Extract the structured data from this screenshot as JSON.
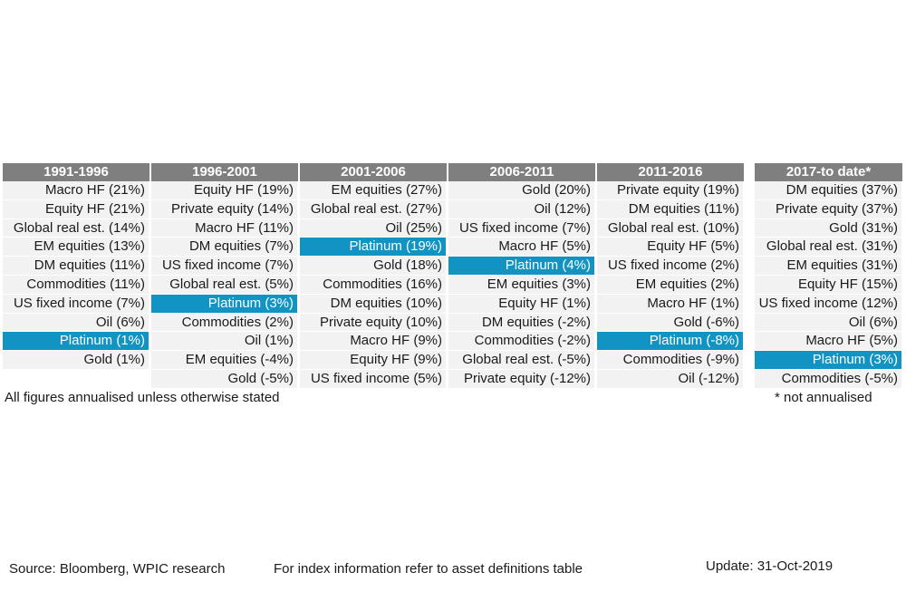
{
  "chart_data": {
    "type": "table",
    "highlight_asset": "Platinum",
    "highlight_color": "#1194c4",
    "header_color": "#7f7f7f",
    "cell_color": "#f2f2f2",
    "periods": [
      {
        "label": "1991-1996",
        "cells": [
          "Macro HF (21%)",
          "Equity HF (21%)",
          "Global real est. (14%)",
          "EM equities (13%)",
          "DM equities (11%)",
          "Commodities (11%)",
          "US fixed income (7%)",
          "Oil (6%)",
          "Platinum (1%)",
          "Gold (1%)",
          ""
        ]
      },
      {
        "label": "1996-2001",
        "cells": [
          "Equity HF (19%)",
          "Private equity (14%)",
          "Macro HF (11%)",
          "DM equities (7%)",
          "US fixed income (7%)",
          "Global real est. (5%)",
          "Platinum (3%)",
          "Commodities (2%)",
          "Oil (1%)",
          "EM equities (-4%)",
          "Gold (-5%)"
        ]
      },
      {
        "label": "2001-2006",
        "cells": [
          "EM equities (27%)",
          "Global real est. (27%)",
          "Oil (25%)",
          "Platinum (19%)",
          "Gold (18%)",
          "Commodities (16%)",
          "DM equities (10%)",
          "Private equity (10%)",
          "Macro HF (9%)",
          "Equity HF (9%)",
          "US fixed income (5%)"
        ]
      },
      {
        "label": "2006-2011",
        "cells": [
          "Gold (20%)",
          "Oil (12%)",
          "US fixed income (7%)",
          "Macro HF (5%)",
          "Platinum (4%)",
          "EM equities (3%)",
          "Equity HF (1%)",
          "DM equities (-2%)",
          "Commodities (-2%)",
          "Global real est. (-5%)",
          "Private equity (-12%)"
        ]
      },
      {
        "label": "2011-2016",
        "cells": [
          "Private equity (19%)",
          "DM equities (11%)",
          "Global real est. (10%)",
          "Equity HF (5%)",
          "US fixed income (2%)",
          "EM equities (2%)",
          "Macro HF (1%)",
          "Gold (-6%)",
          "Platinum (-8%)",
          "Commodities (-9%)",
          "Oil (-12%)"
        ]
      },
      {
        "label": "2017-to date*",
        "cells": [
          "DM equities (37%)",
          "Private equity (37%)",
          "Gold (31%)",
          "Global real est. (31%)",
          "EM equities (31%)",
          "Equity HF (15%)",
          "US fixed income (12%)",
          "Oil (6%)",
          "Macro HF (5%)",
          "Platinum (3%)",
          "Commodities (-5%)"
        ]
      }
    ],
    "notes": {
      "left": "All figures annualised unless otherwise stated",
      "right": "* not annualised"
    }
  },
  "footer": {
    "source": "Source: Bloomberg, WPIC research",
    "index_info": "For index information refer to asset definitions table",
    "update": "Update: 31-Oct-2019"
  }
}
